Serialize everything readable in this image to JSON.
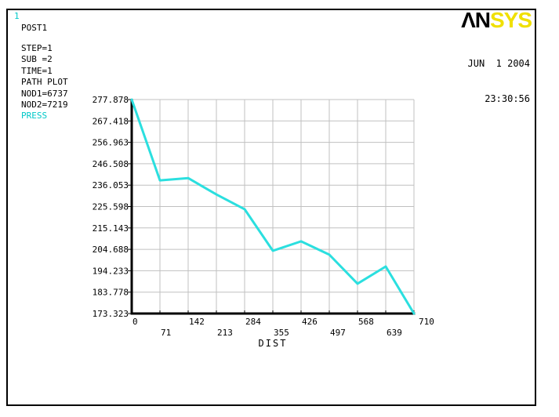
{
  "window_number": "1",
  "logo": {
    "black_text": "AN",
    "yellow_text": "SYS"
  },
  "timestamp": {
    "date": "JUN  1 2004",
    "time": "23:30:56"
  },
  "info_block": {
    "analysis": "POST1",
    "step": "STEP=1",
    "sub": "SUB =2",
    "time": "TIME=1",
    "plot_type": "PATH PLOT",
    "nod1": "NOD1=6737",
    "nod2": "NOD2=7219",
    "quantity": "PRESS"
  },
  "colors": {
    "curve": "#2BDFDF",
    "quantity_label": "#00C8C8",
    "logo_yellow": "#F0E000",
    "grid": "#C0C0C0",
    "axis": "#000000"
  },
  "chart_data": {
    "type": "line",
    "title": "",
    "series_name": "PRESS",
    "xlabel": "DIST",
    "ylabel": "",
    "x": [
      0,
      71,
      142,
      213,
      284,
      355,
      426,
      497,
      568,
      639,
      710
    ],
    "values": [
      277.878,
      238.4,
      239.5,
      231.5,
      224.3,
      204.0,
      208.6,
      202.1,
      187.9,
      196.3,
      173.323
    ],
    "xlim": [
      0,
      710
    ],
    "ylim": [
      173.323,
      277.878
    ],
    "xtick_labels": [
      "0",
      "71",
      "142",
      "213",
      "284",
      "355",
      "426",
      "497",
      "568",
      "639",
      "710"
    ],
    "ytick_labels": [
      "173.323",
      "183.778",
      "194.233",
      "204.688",
      "215.143",
      "225.598",
      "236.053",
      "246.508",
      "256.963",
      "267.418",
      "277.878"
    ],
    "grid": true,
    "legend_position": "none",
    "line_color": "#2BDFDF"
  }
}
